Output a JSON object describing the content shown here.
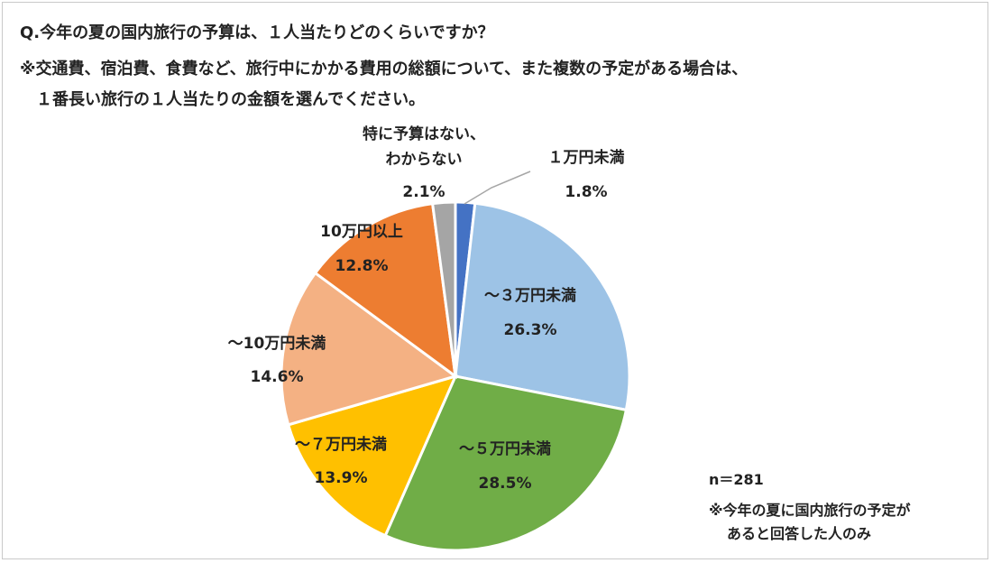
{
  "question": {
    "line1": "Q.今年の夏の国内旅行の予算は、１人当たりどのくらいですか？",
    "line2": "※交通費、宿泊費、食費など、旅行中にかかる費用の総額について、また複数の予定がある場合は、",
    "line3": "１番長い旅行の１人当たりの金額を選んでください。"
  },
  "notes": {
    "n": "n＝281",
    "note_line1": "※今年の夏に国内旅行の予定が",
    "note_line2": "あると回答した人のみ"
  },
  "chart_data": {
    "type": "pie",
    "start": "12 o'clock",
    "direction": "clockwise",
    "slices": [
      {
        "label": "１万円未満",
        "value": 1.8,
        "display": "1.8%",
        "color": "#4472c4"
      },
      {
        "label": "～３万円未満",
        "value": 26.3,
        "display": "26.3%",
        "color": "#9dc3e6"
      },
      {
        "label": "～５万円未満",
        "value": 28.5,
        "display": "28.5%",
        "color": "#70ad47"
      },
      {
        "label": "～７万円未満",
        "value": 13.9,
        "display": "13.9%",
        "color": "#ffc000"
      },
      {
        "label": "～10万円未満",
        "value": 14.6,
        "display": "14.6%",
        "color": "#f4b183"
      },
      {
        "label": "10万円以上",
        "value": 12.8,
        "display": "12.8%",
        "color": "#ed7d31"
      },
      {
        "label": "特に予算はない、わからない",
        "label_lines": [
          "特に予算はない、",
          "わからない"
        ],
        "value": 2.1,
        "display": "2.1%",
        "color": "#a5a5a5"
      }
    ]
  }
}
